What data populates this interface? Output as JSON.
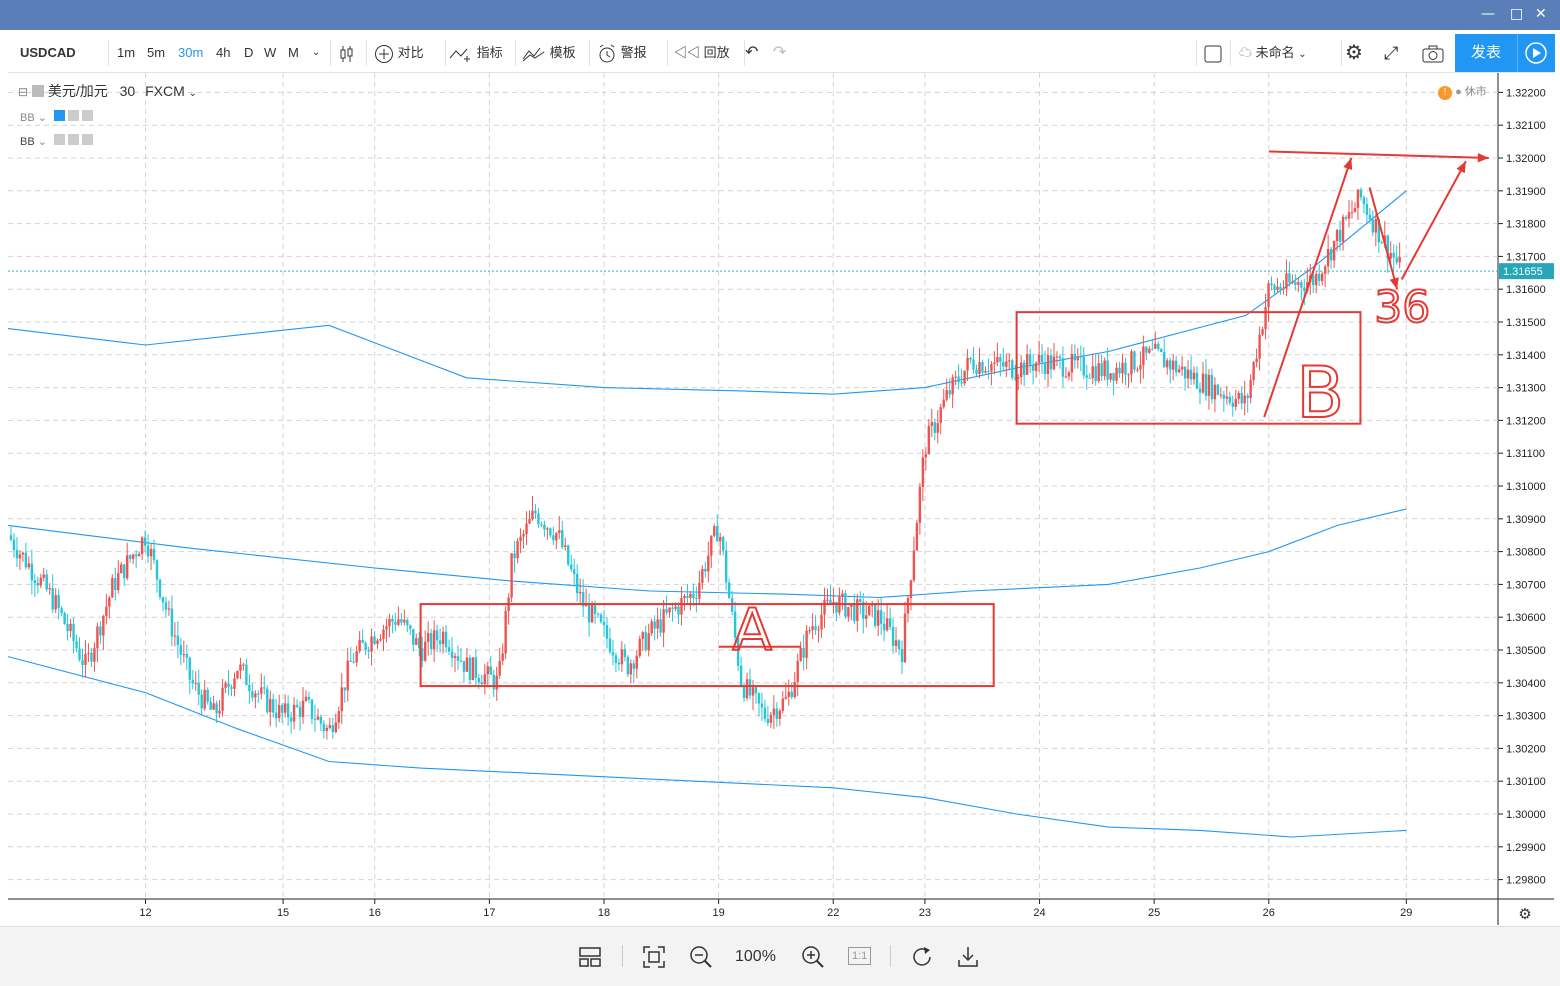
{
  "toolbar": {
    "symbol": "USDCAD",
    "intervals": [
      "1m",
      "5m",
      "30m",
      "4h",
      "D",
      "W",
      "M"
    ],
    "active_interval": "30m",
    "compare": "对比",
    "indicators": "指标",
    "templates": "模板",
    "alerts": "警报",
    "replay": "回放",
    "layout_name": "未命名",
    "publish": "发表"
  },
  "legend": {
    "title": "美元/加元",
    "interval": "30",
    "source": "FXCM",
    "bb1": "BB",
    "bb2": "BB",
    "market_status": "休市",
    "warn": "!"
  },
  "price_label": "1.31655",
  "zoom": {
    "level": "100%",
    "one_to_one": "1:1"
  },
  "annotations": {
    "a": "A",
    "b": "B",
    "c": "36"
  },
  "colors": {
    "up": "#ef5350",
    "down": "#26c6da",
    "band": "#2196f3",
    "annotation": "#e53935",
    "price_line": "#2bb3c0"
  },
  "chart_data": {
    "type": "candlestick",
    "title": "美元/加元 · 30 · FXCM",
    "y_ticks": [
      "1.32200",
      "1.32100",
      "1.32000",
      "1.31900",
      "1.31800",
      "1.31700",
      "1.31600",
      "1.31500",
      "1.31400",
      "1.31300",
      "1.31200",
      "1.31100",
      "1.31000",
      "1.30900",
      "1.30800",
      "1.30700",
      "1.30600",
      "1.30500",
      "1.30400",
      "1.30300",
      "1.30200",
      "1.30100",
      "1.30000",
      "1.29900",
      "1.29800"
    ],
    "ylim": [
      1.2975,
      1.3225
    ],
    "x_ticks": [
      "12",
      "15",
      "16",
      "17",
      "18",
      "19",
      "22",
      "23",
      "24",
      "25",
      "26",
      "29"
    ],
    "x_tick_idx": [
      3,
      6,
      8,
      10.5,
      13,
      15.5,
      18,
      20,
      22.5,
      25,
      27.5,
      30.5
    ],
    "n_slots": 32.5,
    "last_price": 1.31655,
    "close_path": [
      [
        0,
        1.3085
      ],
      [
        1,
        1.3065
      ],
      [
        1.7,
        1.3045
      ],
      [
        2.3,
        1.307
      ],
      [
        3,
        1.3085
      ],
      [
        3.5,
        1.306
      ],
      [
        4,
        1.304
      ],
      [
        4.5,
        1.303
      ],
      [
        5,
        1.3045
      ],
      [
        5.5,
        1.3036
      ],
      [
        6,
        1.303
      ],
      [
        6.5,
        1.3033
      ],
      [
        7,
        1.3025
      ],
      [
        7.5,
        1.3047
      ],
      [
        8,
        1.3055
      ],
      [
        8.5,
        1.306
      ],
      [
        9,
        1.305
      ],
      [
        9.5,
        1.3055
      ],
      [
        10,
        1.3045
      ],
      [
        10.7,
        1.304
      ],
      [
        11,
        1.3078
      ],
      [
        11.5,
        1.3092
      ],
      [
        12,
        1.3085
      ],
      [
        12.5,
        1.3065
      ],
      [
        13,
        1.3055
      ],
      [
        13.5,
        1.3045
      ],
      [
        14,
        1.3055
      ],
      [
        14.5,
        1.3062
      ],
      [
        15,
        1.3068
      ],
      [
        15.5,
        1.3088
      ],
      [
        16,
        1.304
      ],
      [
        16.5,
        1.303
      ],
      [
        17,
        1.3035
      ],
      [
        17.5,
        1.3057
      ],
      [
        18,
        1.3065
      ],
      [
        18.5,
        1.3062
      ],
      [
        19,
        1.306
      ],
      [
        19.5,
        1.305
      ],
      [
        20,
        1.3112
      ],
      [
        20.5,
        1.3128
      ],
      [
        21,
        1.3138
      ],
      [
        22,
        1.3136
      ],
      [
        22.5,
        1.3138
      ],
      [
        23,
        1.3137
      ],
      [
        24,
        1.3135
      ],
      [
        25,
        1.314
      ],
      [
        26,
        1.3132
      ],
      [
        27,
        1.3125
      ],
      [
        27.5,
        1.316
      ],
      [
        28.5,
        1.3163
      ],
      [
        29,
        1.3176
      ],
      [
        29.5,
        1.3188
      ],
      [
        30,
        1.3175
      ],
      [
        30.4,
        1.31655
      ]
    ],
    "bands": [
      {
        "name": "BB upper",
        "points": [
          [
            0,
            1.3148
          ],
          [
            3,
            1.3143
          ],
          [
            7,
            1.3149
          ],
          [
            10,
            1.3133
          ],
          [
            13,
            1.313
          ],
          [
            16,
            1.3129
          ],
          [
            18,
            1.3128
          ],
          [
            20,
            1.313
          ],
          [
            22,
            1.3136
          ],
          [
            24,
            1.3141
          ],
          [
            27,
            1.3152
          ],
          [
            28.5,
            1.3167
          ],
          [
            30.5,
            1.319
          ]
        ]
      },
      {
        "name": "BB middle",
        "points": [
          [
            0,
            1.3088
          ],
          [
            4,
            1.3081
          ],
          [
            8,
            1.3075
          ],
          [
            11,
            1.3071
          ],
          [
            14,
            1.3068
          ],
          [
            17,
            1.3067
          ],
          [
            19,
            1.3066
          ],
          [
            21,
            1.3068
          ],
          [
            24,
            1.307
          ],
          [
            26,
            1.3075
          ],
          [
            27.5,
            1.308
          ],
          [
            29,
            1.3088
          ],
          [
            30.5,
            1.3093
          ]
        ]
      },
      {
        "name": "BB lower",
        "points": [
          [
            0,
            1.3048
          ],
          [
            3,
            1.3037
          ],
          [
            5,
            1.3026
          ],
          [
            7,
            1.3016
          ],
          [
            9,
            1.3014
          ],
          [
            12,
            1.3012
          ],
          [
            15,
            1.301
          ],
          [
            18,
            1.3008
          ],
          [
            20,
            1.3005
          ],
          [
            22,
            1.3
          ],
          [
            24,
            1.2996
          ],
          [
            26,
            1.2995
          ],
          [
            28,
            1.2993
          ],
          [
            30.5,
            1.2995
          ]
        ]
      }
    ],
    "boxes": [
      {
        "label": "A",
        "x": [
          9,
          21.5
        ],
        "y": [
          1.3039,
          1.3064
        ]
      },
      {
        "label": "B",
        "x": [
          22,
          29.5
        ],
        "y": [
          1.3119,
          1.3153
        ]
      }
    ]
  }
}
